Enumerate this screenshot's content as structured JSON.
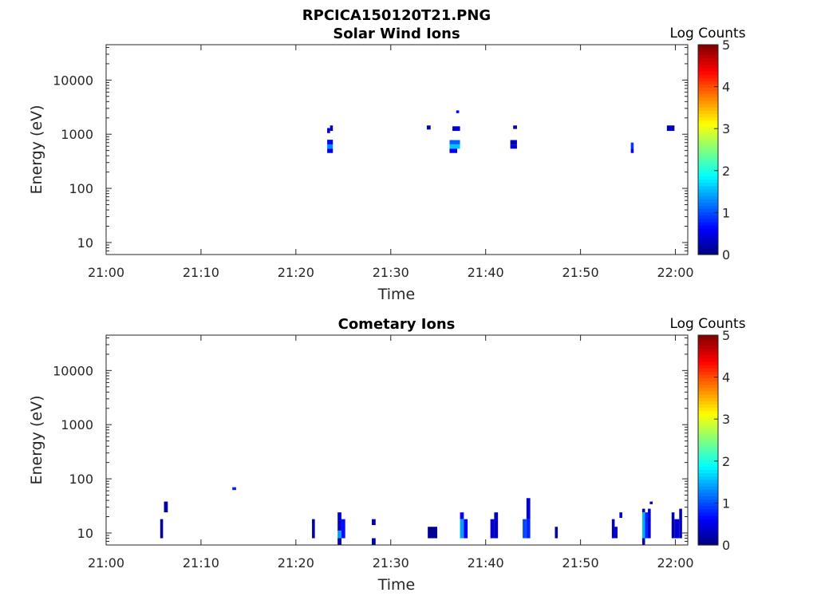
{
  "figure_title": "RPCICA150120T21.PNG",
  "colorbar": {
    "label": "Log Counts",
    "range": [
      0,
      5
    ],
    "ticks": [
      "0",
      "1",
      "2",
      "3",
      "4",
      "5"
    ]
  },
  "chart_data": [
    {
      "type": "heatmap",
      "title": "Solar Wind Ions",
      "xlabel": "Time",
      "ylabel": "Energy (eV)",
      "x_ticks": [
        "21:00",
        "21:10",
        "21:20",
        "21:30",
        "21:40",
        "21:50",
        "22:00"
      ],
      "x_range_minutes": [
        0,
        61.3
      ],
      "y_ticks": [
        "10",
        "100",
        "1000",
        "10000"
      ],
      "y_tick_values": [
        10,
        100,
        1000,
        10000
      ],
      "y_scale": "log",
      "ylim": [
        6,
        45000
      ],
      "cells": [
        {
          "t": [
            23.3,
            23.6
          ],
          "e": [
            1050,
            1300
          ],
          "v": 0.3
        },
        {
          "t": [
            23.6,
            23.9
          ],
          "e": [
            1150,
            1450
          ],
          "v": 0.4
        },
        {
          "t": [
            23.3,
            23.9
          ],
          "e": [
            650,
            790
          ],
          "v": 0.6
        },
        {
          "t": [
            23.3,
            23.9
          ],
          "e": [
            540,
            650
          ],
          "v": 1.3
        },
        {
          "t": [
            23.3,
            23.9
          ],
          "e": [
            450,
            540
          ],
          "v": 0.5
        },
        {
          "t": [
            33.8,
            34.2
          ],
          "e": [
            1220,
            1450
          ],
          "v": 0.3
        },
        {
          "t": [
            36.9,
            37.2
          ],
          "e": [
            2450,
            2750
          ],
          "v": 0.6
        },
        {
          "t": [
            36.5,
            37.3
          ],
          "e": [
            1150,
            1400
          ],
          "v": 0.4
        },
        {
          "t": [
            36.2,
            37.3
          ],
          "e": [
            650,
            780
          ],
          "v": 1.1
        },
        {
          "t": [
            36.2,
            37.3
          ],
          "e": [
            540,
            650
          ],
          "v": 1.6
        },
        {
          "t": [
            36.2,
            37.0
          ],
          "e": [
            450,
            540
          ],
          "v": 0.5
        },
        {
          "t": [
            42.9,
            43.3
          ],
          "e": [
            1250,
            1450
          ],
          "v": 0.3
        },
        {
          "t": [
            42.6,
            43.3
          ],
          "e": [
            640,
            780
          ],
          "v": 0.3
        },
        {
          "t": [
            42.6,
            43.3
          ],
          "e": [
            540,
            640
          ],
          "v": 0.4
        },
        {
          "t": [
            55.3,
            55.6
          ],
          "e": [
            540,
            700
          ],
          "v": 0.9
        },
        {
          "t": [
            55.3,
            55.6
          ],
          "e": [
            450,
            540
          ],
          "v": 0.6
        },
        {
          "t": [
            59.1,
            59.9
          ],
          "e": [
            1150,
            1450
          ],
          "v": 0.3
        }
      ]
    },
    {
      "type": "heatmap",
      "title": "Cometary Ions",
      "xlabel": "Time",
      "ylabel": "Energy (eV)",
      "x_ticks": [
        "21:00",
        "21:10",
        "21:20",
        "21:30",
        "21:40",
        "21:50",
        "22:00"
      ],
      "x_range_minutes": [
        0,
        61.3
      ],
      "y_ticks": [
        "10",
        "100",
        "1000",
        "10000"
      ],
      "y_tick_values": [
        10,
        100,
        1000,
        10000
      ],
      "y_scale": "log",
      "ylim": [
        6,
        45000
      ],
      "cells": [
        {
          "t": [
            5.7,
            6.0
          ],
          "e": [
            8,
            18
          ],
          "v": 0.1
        },
        {
          "t": [
            6.1,
            6.5
          ],
          "e": [
            24,
            38
          ],
          "v": 0.2
        },
        {
          "t": [
            13.3,
            13.7
          ],
          "e": [
            62,
            70
          ],
          "v": 0.8
        },
        {
          "t": [
            21.7,
            22.0
          ],
          "e": [
            8,
            18
          ],
          "v": 0.2
        },
        {
          "t": [
            24.4,
            24.8
          ],
          "e": [
            11,
            24
          ],
          "v": 0.4
        },
        {
          "t": [
            24.4,
            24.8
          ],
          "e": [
            8,
            11
          ],
          "v": 1.4
        },
        {
          "t": [
            24.4,
            24.8
          ],
          "e": [
            6,
            8
          ],
          "v": 0.2
        },
        {
          "t": [
            24.8,
            25.2
          ],
          "e": [
            8,
            18
          ],
          "v": 0.7
        },
        {
          "t": [
            28.0,
            28.4
          ],
          "e": [
            14,
            18
          ],
          "v": 0.2
        },
        {
          "t": [
            28.0,
            28.4
          ],
          "e": [
            6,
            8
          ],
          "v": 0.2
        },
        {
          "t": [
            33.9,
            34.9
          ],
          "e": [
            8,
            13
          ],
          "v": 0.1
        },
        {
          "t": [
            37.3,
            37.7
          ],
          "e": [
            18,
            24
          ],
          "v": 0.6
        },
        {
          "t": [
            37.3,
            37.7
          ],
          "e": [
            8,
            18
          ],
          "v": 1.4
        },
        {
          "t": [
            37.7,
            38.1
          ],
          "e": [
            8,
            18
          ],
          "v": 0.6
        },
        {
          "t": [
            40.5,
            40.9
          ],
          "e": [
            8,
            18
          ],
          "v": 0.4
        },
        {
          "t": [
            40.9,
            41.3
          ],
          "e": [
            8,
            24
          ],
          "v": 0.3
        },
        {
          "t": [
            43.9,
            44.3
          ],
          "e": [
            8,
            18
          ],
          "v": 1.0
        },
        {
          "t": [
            44.3,
            44.7
          ],
          "e": [
            18,
            44
          ],
          "v": 0.4
        },
        {
          "t": [
            44.3,
            44.7
          ],
          "e": [
            8,
            18
          ],
          "v": 0.8
        },
        {
          "t": [
            47.3,
            47.6
          ],
          "e": [
            8,
            13
          ],
          "v": 0.2
        },
        {
          "t": [
            53.3,
            53.6
          ],
          "e": [
            8,
            18
          ],
          "v": 0.3
        },
        {
          "t": [
            53.6,
            53.9
          ],
          "e": [
            8,
            13
          ],
          "v": 0.4
        },
        {
          "t": [
            54.1,
            54.4
          ],
          "e": [
            19,
            24
          ],
          "v": 0.3
        },
        {
          "t": [
            56.5,
            56.8
          ],
          "e": [
            24,
            28
          ],
          "v": 0.2
        },
        {
          "t": [
            56.5,
            56.8
          ],
          "e": [
            8,
            24
          ],
          "v": 1.5
        },
        {
          "t": [
            56.5,
            56.8
          ],
          "e": [
            6,
            8
          ],
          "v": 0.3
        },
        {
          "t": [
            56.8,
            57.1
          ],
          "e": [
            8,
            24
          ],
          "v": 0.8
        },
        {
          "t": [
            57.1,
            57.4
          ],
          "e": [
            8,
            28
          ],
          "v": 0.4
        },
        {
          "t": [
            57.3,
            57.6
          ],
          "e": [
            34,
            38
          ],
          "v": 0.3
        },
        {
          "t": [
            59.6,
            59.9
          ],
          "e": [
            8,
            24
          ],
          "v": 0.2
        },
        {
          "t": [
            59.9,
            60.4
          ],
          "e": [
            8,
            18
          ],
          "v": 0.4
        },
        {
          "t": [
            60.4,
            60.7
          ],
          "e": [
            8,
            28
          ],
          "v": 0.3
        }
      ]
    }
  ]
}
